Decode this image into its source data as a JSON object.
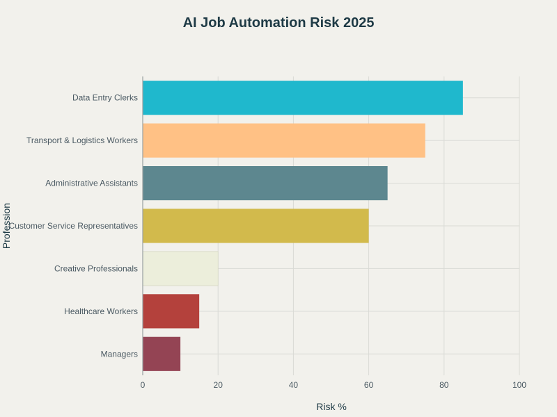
{
  "chart_data": {
    "type": "bar",
    "orientation": "horizontal",
    "title": "AI Job Automation Risk 2025",
    "xlabel": "Risk %",
    "ylabel": "Profession",
    "xlim": [
      0,
      100
    ],
    "x_ticks": [
      0,
      20,
      40,
      60,
      80,
      100
    ],
    "grid": true,
    "categories": [
      "Data Entry Clerks",
      "Transport & Logistics Workers",
      "Administrative Assistants",
      "Customer Service Representatives",
      "Creative Professionals",
      "Healthcare Workers",
      "Managers"
    ],
    "values": [
      85,
      75,
      65,
      60,
      20,
      15,
      10
    ],
    "colors": [
      "#1fb8cd",
      "#ffc185",
      "#5d878f",
      "#d2ba4c",
      "#eceedb",
      "#b4413c",
      "#944454"
    ]
  }
}
